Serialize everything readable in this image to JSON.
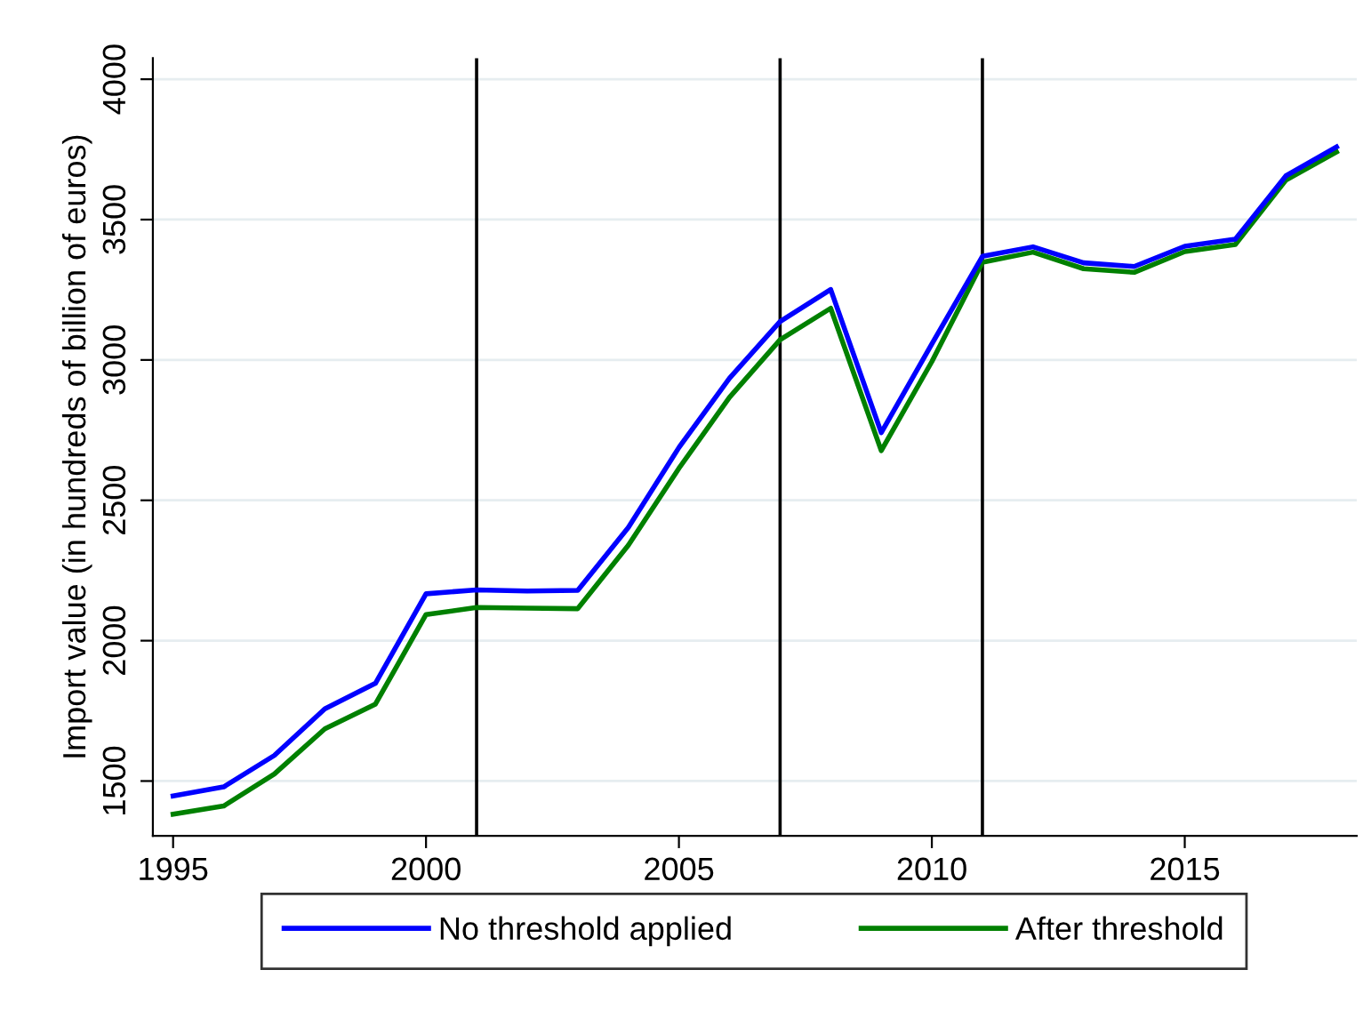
{
  "chart_data": {
    "type": "line",
    "ylabel": "Import value (in hundreds of billion of euros)",
    "x": [
      1995,
      1996,
      1997,
      1998,
      1999,
      2000,
      2001,
      2002,
      2003,
      2004,
      2005,
      2006,
      2007,
      2008,
      2009,
      2010,
      2011,
      2012,
      2013,
      2014,
      2015,
      2016,
      2017,
      2018
    ],
    "series": [
      {
        "name": "No threshold applied",
        "color": "#0000ff",
        "values": [
          1447,
          1479,
          1591,
          1757,
          1848,
          2167,
          2181,
          2177,
          2179,
          2403,
          2688,
          2935,
          3137,
          3251,
          2741,
          3057,
          3369,
          3403,
          3346,
          3333,
          3405,
          3430,
          3656,
          3759
        ]
      },
      {
        "name": "After threshold",
        "color": "#008000",
        "values": [
          1382,
          1411,
          1525,
          1686,
          1774,
          2093,
          2118,
          2116,
          2114,
          2340,
          2614,
          2867,
          3072,
          3184,
          2677,
          2994,
          3348,
          3384,
          3325,
          3312,
          3386,
          3411,
          3641,
          3741
        ]
      }
    ],
    "xlim": [
      1994.6,
      2018.4
    ],
    "xticks": [
      1995,
      2000,
      2005,
      2010,
      2015
    ],
    "ylim": [
      1305,
      4075
    ],
    "yticks": [
      1500,
      2000,
      2500,
      3000,
      3500,
      4000
    ],
    "ref_lines": [
      {
        "axis": "x",
        "value": 2001,
        "color": "#000000"
      },
      {
        "axis": "x",
        "value": 2007,
        "color": "#000000"
      },
      {
        "axis": "x",
        "value": 2011,
        "color": "#000000"
      }
    ],
    "grid": "y",
    "legend": "bottom",
    "marker": "none",
    "line_style": "solid"
  }
}
